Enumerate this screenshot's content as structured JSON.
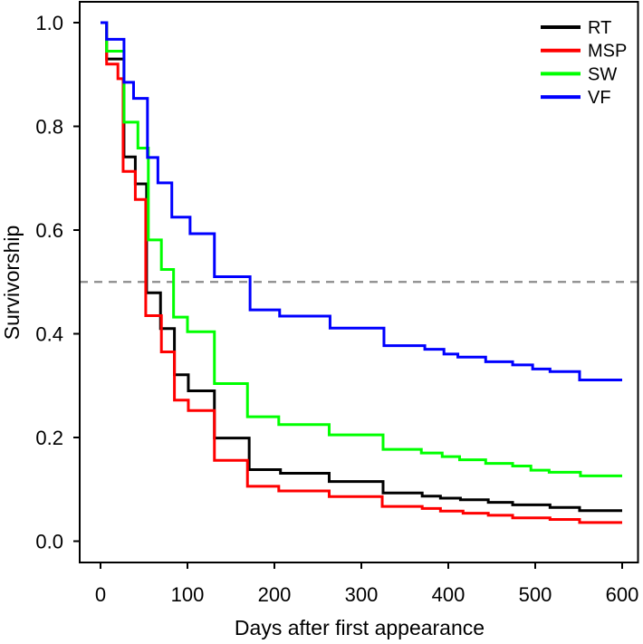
{
  "chart_data": {
    "type": "line",
    "subtype": "step-survival-curve",
    "title": "",
    "xlabel": "Days after first appearance",
    "ylabel": "Survivorship",
    "xlim": [
      0,
      600
    ],
    "ylim": [
      0.0,
      1.0
    ],
    "x_ticks": [
      0,
      100,
      200,
      300,
      400,
      500,
      600
    ],
    "y_ticks": [
      0.0,
      0.2,
      0.4,
      0.6,
      0.8,
      1.0
    ],
    "y_tick_labels": [
      "0.0",
      "0.2",
      "0.4",
      "0.6",
      "0.8",
      "1.0"
    ],
    "grid": false,
    "legend_position": "top-right",
    "reference_line": {
      "y": 0.5,
      "style": "dashed",
      "color": "#8c8c8c"
    },
    "axis_color": "#000000",
    "series": [
      {
        "name": "RT",
        "color": "#000000",
        "points": [
          [
            0,
            1.0
          ],
          [
            7,
            0.93
          ],
          [
            27,
            0.741
          ],
          [
            40,
            0.689
          ],
          [
            53,
            0.479
          ],
          [
            69,
            0.41
          ],
          [
            85,
            0.321
          ],
          [
            101,
            0.29
          ],
          [
            131,
            0.199
          ],
          [
            171,
            0.138
          ],
          [
            207,
            0.131
          ],
          [
            263,
            0.115
          ],
          [
            325,
            0.093
          ],
          [
            370,
            0.087
          ],
          [
            391,
            0.083
          ],
          [
            414,
            0.08
          ],
          [
            446,
            0.075
          ],
          [
            474,
            0.07
          ],
          [
            517,
            0.065
          ],
          [
            551,
            0.059
          ],
          [
            600,
            0.059
          ]
        ]
      },
      {
        "name": "MSP",
        "color": "#ff0000",
        "points": [
          [
            0,
            1.0
          ],
          [
            7,
            0.92
          ],
          [
            20,
            0.892
          ],
          [
            26,
            0.713
          ],
          [
            40,
            0.659
          ],
          [
            52,
            0.435
          ],
          [
            70,
            0.365
          ],
          [
            85,
            0.272
          ],
          [
            101,
            0.252
          ],
          [
            131,
            0.156
          ],
          [
            169,
            0.106
          ],
          [
            205,
            0.097
          ],
          [
            263,
            0.086
          ],
          [
            324,
            0.067
          ],
          [
            370,
            0.063
          ],
          [
            391,
            0.058
          ],
          [
            417,
            0.054
          ],
          [
            446,
            0.05
          ],
          [
            474,
            0.045
          ],
          [
            517,
            0.042
          ],
          [
            551,
            0.036
          ],
          [
            600,
            0.036
          ]
        ]
      },
      {
        "name": "SW",
        "color": "#00ff00",
        "points": [
          [
            0,
            1.0
          ],
          [
            7,
            0.945
          ],
          [
            27,
            0.808
          ],
          [
            43,
            0.758
          ],
          [
            55,
            0.581
          ],
          [
            70,
            0.524
          ],
          [
            84,
            0.432
          ],
          [
            100,
            0.404
          ],
          [
            131,
            0.304
          ],
          [
            169,
            0.24
          ],
          [
            205,
            0.225
          ],
          [
            263,
            0.205
          ],
          [
            325,
            0.177
          ],
          [
            369,
            0.17
          ],
          [
            393,
            0.163
          ],
          [
            413,
            0.157
          ],
          [
            443,
            0.15
          ],
          [
            474,
            0.145
          ],
          [
            495,
            0.137
          ],
          [
            516,
            0.133
          ],
          [
            552,
            0.126
          ],
          [
            600,
            0.126
          ]
        ]
      },
      {
        "name": "VF",
        "color": "#0000ff",
        "points": [
          [
            0,
            1.0
          ],
          [
            7,
            0.968
          ],
          [
            27,
            0.885
          ],
          [
            38,
            0.854
          ],
          [
            54,
            0.74
          ],
          [
            66,
            0.691
          ],
          [
            82,
            0.625
          ],
          [
            103,
            0.593
          ],
          [
            131,
            0.51
          ],
          [
            172,
            0.446
          ],
          [
            206,
            0.434
          ],
          [
            264,
            0.411
          ],
          [
            326,
            0.377
          ],
          [
            373,
            0.37
          ],
          [
            395,
            0.361
          ],
          [
            411,
            0.355
          ],
          [
            443,
            0.346
          ],
          [
            474,
            0.34
          ],
          [
            497,
            0.332
          ],
          [
            517,
            0.327
          ],
          [
            551,
            0.311
          ],
          [
            600,
            0.311
          ]
        ]
      }
    ]
  }
}
